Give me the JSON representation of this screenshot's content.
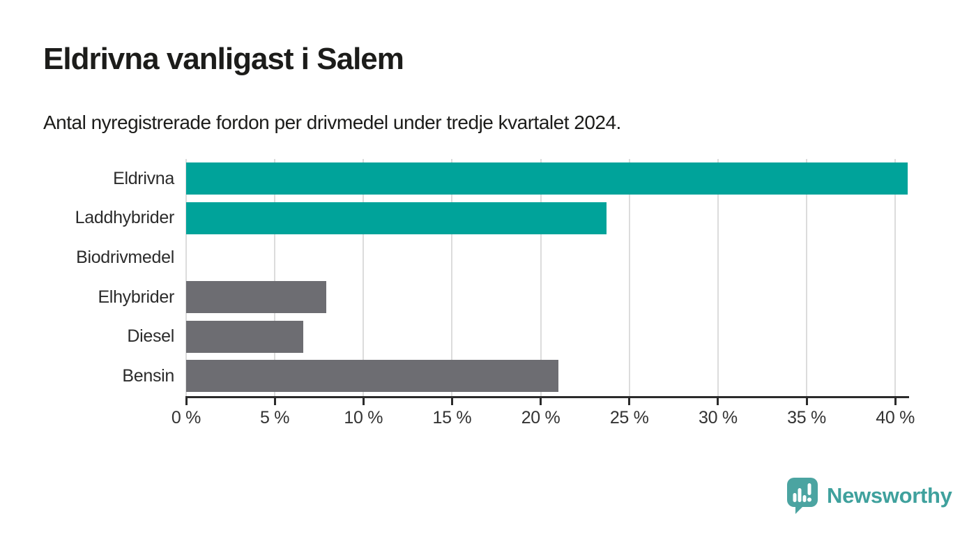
{
  "header": {
    "title": "Eldrivna vanligast i Salem",
    "subtitle": "Antal nyregistrerade fordon per drivmedel under tredje kvartalet 2024."
  },
  "chart_data": {
    "type": "bar",
    "orientation": "horizontal",
    "title": "Eldrivna vanligast i Salem",
    "subtitle": "Antal nyregistrerade fordon per drivmedel under tredje kvartalet 2024.",
    "categories": [
      "Eldrivna",
      "Laddhybrider",
      "Biodrivmedel",
      "Elhybrider",
      "Diesel",
      "Bensin"
    ],
    "values": [
      40.7,
      23.7,
      0,
      7.9,
      6.6,
      21.0
    ],
    "unit": "%",
    "bar_colors": [
      "#00a39a",
      "#00a39a",
      "#6d6d72",
      "#6d6d72",
      "#6d6d72",
      "#6d6d72"
    ],
    "highlight_color": "#00a39a",
    "default_color": "#6d6d72",
    "xlim": [
      0,
      40.7
    ],
    "x_ticks": [
      0,
      5,
      10,
      15,
      20,
      25,
      30,
      35,
      40
    ],
    "x_tick_labels": [
      "0 %",
      "5 %",
      "10 %",
      "15 %",
      "20 %",
      "25 %",
      "30 %",
      "35 %",
      "40 %"
    ],
    "grid": true,
    "gridline_color": "#dcdcdc",
    "axis_color": "#2b2b2b",
    "legend": "none"
  },
  "footer": {
    "brand": "Newsworthy",
    "brand_color": "#3fa19d",
    "logo_color": "#4ba4a1",
    "logo_icon": "bar-chart-speech-bubble-icon"
  }
}
